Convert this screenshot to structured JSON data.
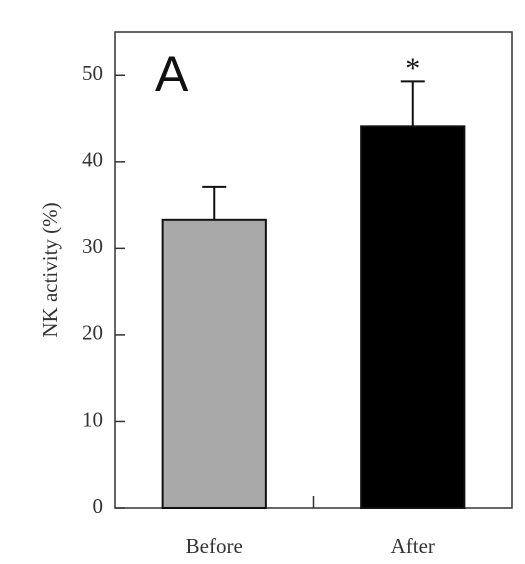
{
  "chart_data": {
    "type": "bar",
    "panel_label": "A",
    "ylabel": "NK activity (%)",
    "categories": [
      "Before",
      "After"
    ],
    "values": [
      33.3,
      44.1
    ],
    "errors": [
      3.8,
      5.2
    ],
    "colors": [
      "#a9a9a9",
      "#000000"
    ],
    "value_annotations": [
      null,
      "*"
    ],
    "ylim": [
      0,
      55
    ],
    "yticks": [
      0,
      10,
      20,
      30,
      40,
      50
    ]
  }
}
